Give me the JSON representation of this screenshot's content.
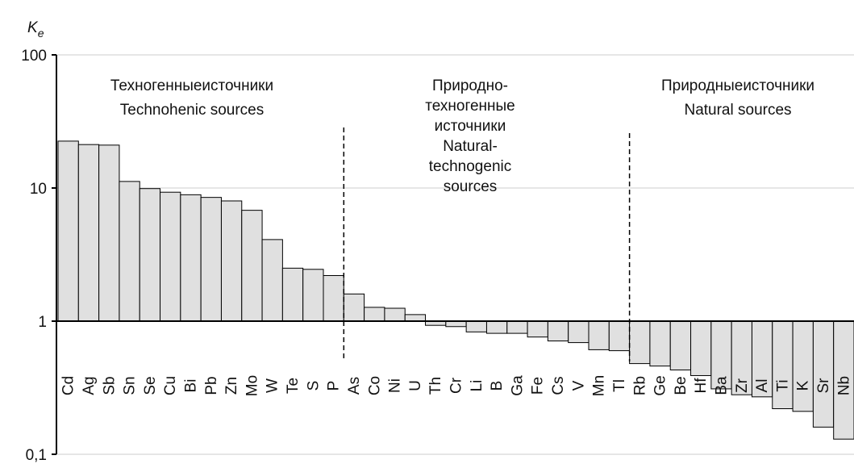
{
  "chart_data": {
    "type": "bar",
    "log_y": true,
    "baseline": 1,
    "grid": true,
    "color": "#e0e0e0",
    "y_label": "K",
    "y_label_sub": "e",
    "ylim": [
      0.1,
      100
    ],
    "yticks": [
      {
        "value": 0.1,
        "label": "0,1"
      },
      1,
      10,
      100
    ],
    "categories": [
      "Cd",
      "Ag",
      "Sb",
      "Sn",
      "Se",
      "Cu",
      "Bi",
      "Pb",
      "Zn",
      "Mo",
      "W",
      "Te",
      "S",
      "P",
      "As",
      "Co",
      "Ni",
      "U",
      "Th",
      "Cr",
      "Li",
      "B",
      "Ga",
      "Fe",
      "Cs",
      "V",
      "Mn",
      "Tl",
      "Rb",
      "Ge",
      "Be",
      "Hf",
      "Ba",
      "Zr",
      "Al",
      "Ti",
      "K",
      "Sr",
      "Nb"
    ],
    "values": [
      22.5,
      21.2,
      21,
      11.2,
      9.9,
      9.3,
      8.9,
      8.5,
      8.0,
      6.8,
      4.1,
      2.5,
      2.45,
      2.2,
      1.6,
      1.27,
      1.25,
      1.12,
      0.93,
      0.91,
      0.83,
      0.81,
      0.81,
      0.76,
      0.71,
      0.69,
      0.61,
      0.6,
      0.48,
      0.46,
      0.43,
      0.39,
      0.31,
      0.28,
      0.27,
      0.22,
      0.21,
      0.16,
      0.13
    ],
    "annotations": [
      {
        "lines": [
          "Техногенныеисточники",
          "Technohenic sources"
        ]
      },
      {
        "lines": [
          "Природно-",
          "техногенные",
          "источники",
          "Natural-",
          "technogenic",
          "sources"
        ]
      },
      {
        "lines": [
          "Природныеисточники",
          "Natural sources"
        ]
      }
    ]
  }
}
